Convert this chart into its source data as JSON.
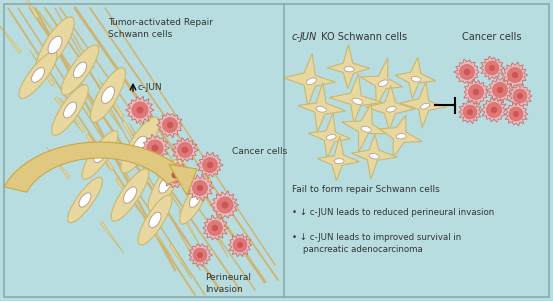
{
  "bg_color": "#b8dde0",
  "border_color": "#8aabae",
  "sc_color": "#e8d8a0",
  "sc_edge": "#c8b870",
  "cc_outer": "#f0b8b8",
  "cc_inner": "#e07878",
  "cc_edge": "#c07070",
  "nuc_edge": "#b8a090",
  "nerve_color": "#d4b878",
  "nerve_edge": "#b89848",
  "arrow_color": "#e0c880",
  "arrow_edge": "#c8a840",
  "text_color": "#333333",
  "left_title": "Tumor-activated Repair\nSchwann cells",
  "right_sc_label_italic": "c-JUN",
  "right_sc_label_rest": " KO Schwann cells",
  "right_cancer_label": "Cancer cells",
  "right_fail_label": "Fail to form repair Schwann cells",
  "left_cancer_label": "Cancer cells",
  "left_arrow_label": "Perineural\nInvasion"
}
